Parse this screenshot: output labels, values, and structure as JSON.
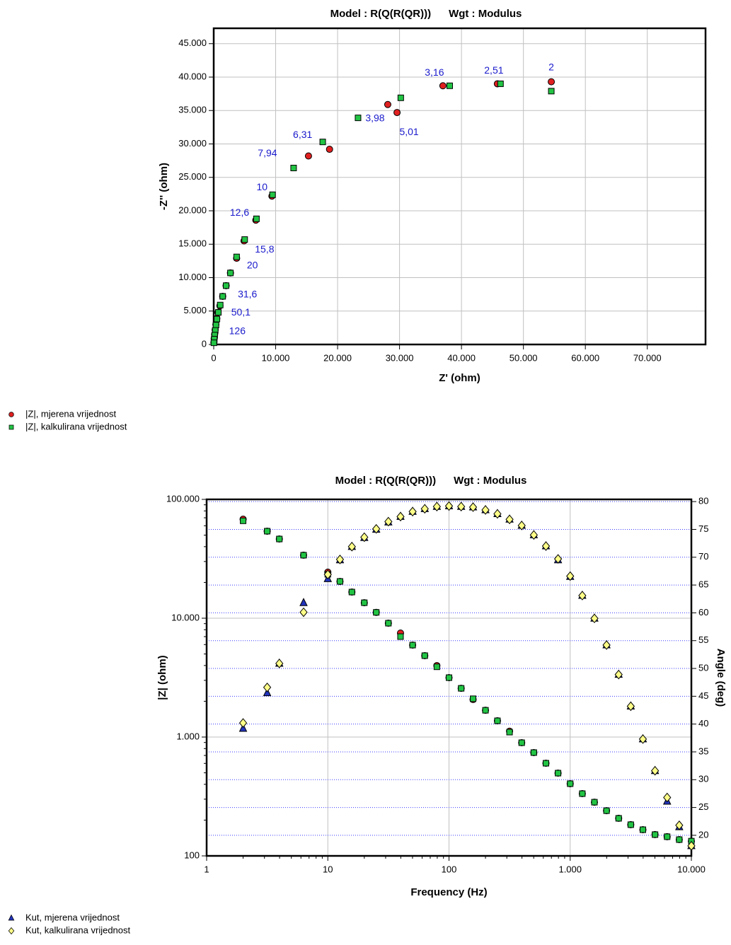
{
  "chart_data": [
    {
      "type": "scatter",
      "title": "Model : R(Q(R(QR)))      Wgt : Modulus",
      "x_label": "Z' (ohm)",
      "y_label": "-Z'' (ohm)",
      "xlim": [
        0,
        79400
      ],
      "ylim": [
        0,
        47300
      ],
      "grid": true,
      "xticks": [
        0,
        {
          "value": 10000,
          "label": "10.000"
        },
        {
          "value": 20000,
          "label": "20.000"
        },
        {
          "value": 30000,
          "label": "30.000"
        },
        {
          "value": 40000,
          "label": "40.000"
        },
        {
          "value": 50000,
          "label": "50.000"
        },
        {
          "value": 60000,
          "label": "60.000"
        },
        {
          "value": 70000,
          "label": "70.000"
        }
      ],
      "yticks": [
        0,
        {
          "value": 5000,
          "label": "5.000"
        },
        {
          "value": 10000,
          "label": "10.000"
        },
        {
          "value": 15000,
          "label": "15.000"
        },
        {
          "value": 20000,
          "label": "20.000"
        },
        {
          "value": 25000,
          "label": "25.000"
        },
        {
          "value": 30000,
          "label": "30.000"
        },
        {
          "value": 35000,
          "label": "35.000"
        },
        {
          "value": 40000,
          "label": "40.000"
        },
        {
          "value": 45000,
          "label": "45.000"
        }
      ],
      "series": [
        {
          "name": "|Z|, mjerena vrijednost",
          "color": "#e02020",
          "marker": "circle",
          "x": [
            54500,
            45800,
            37000,
            28100,
            29600,
            18700,
            15300,
            9400,
            6800,
            4900,
            3700,
            2700,
            2000,
            1450,
            1000,
            700,
            500,
            350,
            230,
            150,
            80,
            30
          ],
          "values": [
            39300,
            39000,
            38700,
            35900,
            34700,
            29200,
            28200,
            22200,
            18600,
            15500,
            12900,
            10700,
            8800,
            7200,
            5800,
            4800,
            3900,
            3000,
            2200,
            1500,
            900,
            300
          ],
          "point_labels": [
            "2",
            "2,51",
            "3,16",
            "3,98",
            "5,01",
            "6,31",
            "7,94",
            "10",
            "12,6",
            "15,8",
            null,
            "20",
            null,
            "31,6",
            null,
            null,
            "50,1",
            null,
            null,
            "126",
            null,
            null
          ]
        },
        {
          "name": "|Z|, kalkulirana vrijednost",
          "color": "#22c444",
          "marker": "square",
          "x": [
            54500,
            46300,
            38100,
            30200,
            23300,
            17600,
            12900,
            9500,
            6900,
            5000,
            3700,
            2700,
            2000,
            1450,
            1050,
            750,
            520,
            370,
            250,
            160,
            90,
            30
          ],
          "values": [
            37900,
            39000,
            38700,
            36900,
            33900,
            30300,
            26400,
            22400,
            18800,
            15700,
            13100,
            10700,
            8800,
            7200,
            5900,
            4800,
            3800,
            2900,
            2100,
            1400,
            800,
            250
          ]
        }
      ]
    },
    {
      "type": "scatter",
      "title": "Model : R(Q(R(QR)))      Wgt : Modulus",
      "x_label": "Frequency (Hz)",
      "y_label": "|Z| (ohm)",
      "y2_label": "Angle (deg)",
      "xscale": "log",
      "yscale": "log",
      "grid": true,
      "y2grid": true,
      "y2grid_color": "#3a3aff",
      "xlim": [
        1,
        10000
      ],
      "ylim": [
        100,
        100000
      ],
      "y2lim": [
        16.3,
        80.4
      ],
      "xticks": [
        1,
        10,
        100,
        {
          "value": 1000,
          "label": "1.000"
        },
        {
          "value": 10000,
          "label": "10.000"
        }
      ],
      "yticks": [
        100,
        {
          "value": 1000,
          "label": "1.000"
        },
        {
          "value": 10000,
          "label": "10.000"
        },
        {
          "value": 100000,
          "label": "100.000"
        }
      ],
      "y2ticks": [
        20,
        25,
        30,
        35,
        40,
        45,
        50,
        55,
        60,
        65,
        70,
        75,
        80
      ],
      "x": [
        2,
        3.16,
        3.98,
        6.31,
        10,
        12.6,
        15.8,
        20,
        25.1,
        31.6,
        39.8,
        50.1,
        63.1,
        79.4,
        100,
        126,
        158,
        200,
        251,
        316,
        398,
        501,
        631,
        794,
        1000,
        1259,
        1585,
        1995,
        2512,
        3162,
        3981,
        5012,
        6310,
        7943,
        10000
      ],
      "series": [
        {
          "color": "#e02020",
          "marker": "circle",
          "values": [
            68100,
            54000,
            46400,
            33900,
            24400,
            20400,
            16600,
            13500,
            11200,
            9080,
            7500,
            5940,
            4840,
            3990,
            3160,
            2570,
            2070,
            1680,
            1370,
            1120,
            896,
            740,
            602,
            497,
            405,
            334,
            283,
            240,
            207,
            183,
            166,
            151,
            145,
            137,
            133
          ]
        },
        {
          "color": "#22c444",
          "marker": "square",
          "values": [
            66000,
            54000,
            46400,
            33900,
            23400,
            20400,
            16600,
            13500,
            11200,
            9080,
            7000,
            5940,
            4840,
            3900,
            3160,
            2570,
            2100,
            1680,
            1370,
            1100,
            896,
            740,
            602,
            497,
            405,
            334,
            283,
            240,
            207,
            183,
            166,
            151,
            145,
            137,
            133
          ]
        },
        {
          "name": "Kut, mjerena vrijednost",
          "color": "#2233bb",
          "marker": "triangle",
          "axis": "y2",
          "values": [
            39.2,
            45.6,
            50.9,
            61.8,
            66.1,
            69.5,
            71.9,
            73.5,
            75.0,
            76.3,
            77.3,
            78.2,
            78.7,
            79.1,
            79.2,
            79.1,
            79.0,
            78.5,
            77.8,
            76.8,
            75.7,
            74.0,
            72.0,
            69.5,
            66.5,
            63.1,
            59.0,
            54.2,
            48.9,
            43.2,
            37.3,
            31.6,
            26.1,
            21.5,
            18.1
          ]
        },
        {
          "name": "Kut, kalkulirana vrijednost",
          "color": "#ffff88",
          "marker": "diamond",
          "axis": "y2",
          "values": [
            40.2,
            46.6,
            50.9,
            60.1,
            66.9,
            69.6,
            71.9,
            73.6,
            75.1,
            76.4,
            77.3,
            78.2,
            78.7,
            79.1,
            79.2,
            79.1,
            79.0,
            78.5,
            77.8,
            76.8,
            75.7,
            74.0,
            72.0,
            69.7,
            66.6,
            63.1,
            59.0,
            54.2,
            48.9,
            43.2,
            37.3,
            31.6,
            26.8,
            21.8,
            18.1
          ]
        }
      ]
    }
  ]
}
